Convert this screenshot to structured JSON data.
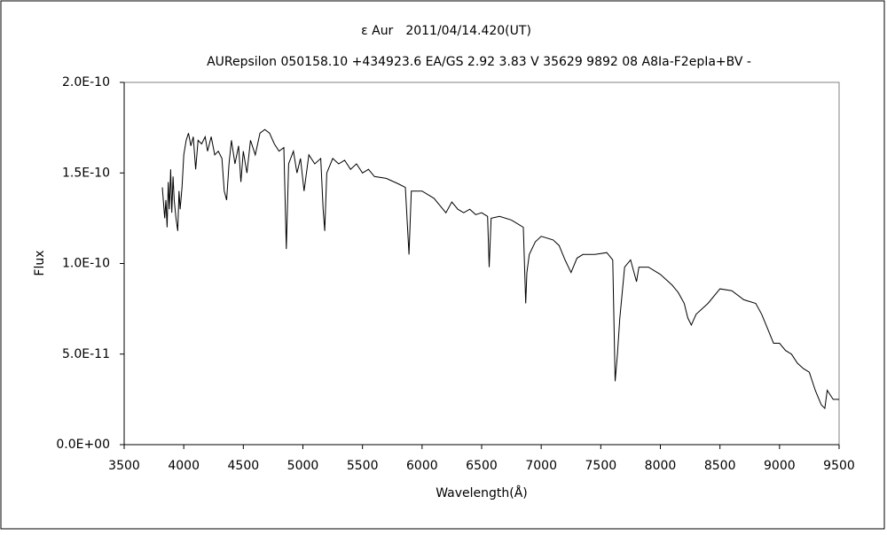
{
  "chart_data": {
    "type": "line",
    "title": "ε Aur　2011/04/14.420(UT)",
    "subtitle": "AURepsilon 050158.10 +434923.6 EA/GS 2.92 3.83 V 35629 9892 08 A8Ia-F2epIa+BV -",
    "x_label": "Wavelength(Å)",
    "y_label": "Flux",
    "color": "#000000",
    "xlim": [
      3500,
      9500
    ],
    "xticks": [
      3500,
      4000,
      4500,
      5000,
      5500,
      6000,
      6500,
      7000,
      7500,
      8000,
      8500,
      9000,
      9500
    ],
    "ylim": [
      0,
      2e-10
    ],
    "yticks": [
      {
        "value": 0,
        "label": "0.0E+00"
      },
      {
        "value": 5e-11,
        "label": "5.0E-11"
      },
      {
        "value": 1e-10,
        "label": "1.0E-10"
      },
      {
        "value": 1.5e-10,
        "label": "1.5E-10"
      },
      {
        "value": 2e-10,
        "label": "2.0E-10"
      }
    ],
    "x": [
      3820,
      3840,
      3850,
      3860,
      3870,
      3880,
      3890,
      3900,
      3910,
      3920,
      3935,
      3950,
      3960,
      3970,
      3985,
      4000,
      4020,
      4040,
      4060,
      4080,
      4100,
      4120,
      4150,
      4180,
      4200,
      4230,
      4260,
      4290,
      4320,
      4340,
      4360,
      4380,
      4400,
      4430,
      4460,
      4480,
      4500,
      4530,
      4560,
      4600,
      4640,
      4680,
      4720,
      4760,
      4800,
      4840,
      4861,
      4880,
      4920,
      4950,
      4980,
      5010,
      5050,
      5100,
      5150,
      5170,
      5183,
      5200,
      5250,
      5300,
      5350,
      5400,
      5450,
      5500,
      5550,
      5600,
      5700,
      5800,
      5860,
      5890,
      5910,
      6000,
      6100,
      6150,
      6200,
      6250,
      6300,
      6350,
      6400,
      6450,
      6500,
      6550,
      6563,
      6580,
      6650,
      6750,
      6850,
      6870,
      6880,
      6900,
      6950,
      7000,
      7100,
      7150,
      7200,
      7250,
      7300,
      7350,
      7450,
      7550,
      7600,
      7620,
      7640,
      7660,
      7700,
      7750,
      7800,
      7820,
      7900,
      8000,
      8100,
      8150,
      8200,
      8230,
      8260,
      8300,
      8400,
      8500,
      8600,
      8700,
      8800,
      8850,
      8900,
      8950,
      9000,
      9050,
      9100,
      9150,
      9200,
      9250,
      9300,
      9350,
      9380,
      9400,
      9450,
      9500
    ],
    "values": [
      1.42e-10,
      1.25e-10,
      1.35e-10,
      1.2e-10,
      1.45e-10,
      1.3e-10,
      1.52e-10,
      1.28e-10,
      1.48e-10,
      1.35e-10,
      1.25e-10,
      1.18e-10,
      1.4e-10,
      1.3e-10,
      1.42e-10,
      1.6e-10,
      1.68e-10,
      1.72e-10,
      1.65e-10,
      1.7e-10,
      1.52e-10,
      1.68e-10,
      1.66e-10,
      1.7e-10,
      1.62e-10,
      1.7e-10,
      1.6e-10,
      1.62e-10,
      1.58e-10,
      1.4e-10,
      1.35e-10,
      1.55e-10,
      1.68e-10,
      1.55e-10,
      1.65e-10,
      1.45e-10,
      1.62e-10,
      1.5e-10,
      1.68e-10,
      1.6e-10,
      1.72e-10,
      1.74e-10,
      1.72e-10,
      1.66e-10,
      1.62e-10,
      1.64e-10,
      1.08e-10,
      1.55e-10,
      1.62e-10,
      1.5e-10,
      1.58e-10,
      1.4e-10,
      1.6e-10,
      1.55e-10,
      1.58e-10,
      1.3e-10,
      1.18e-10,
      1.5e-10,
      1.58e-10,
      1.55e-10,
      1.57e-10,
      1.52e-10,
      1.55e-10,
      1.5e-10,
      1.52e-10,
      1.48e-10,
      1.47e-10,
      1.44e-10,
      1.42e-10,
      1.05e-10,
      1.4e-10,
      1.4e-10,
      1.36e-10,
      1.32e-10,
      1.28e-10,
      1.34e-10,
      1.3e-10,
      1.28e-10,
      1.3e-10,
      1.27e-10,
      1.28e-10,
      1.26e-10,
      9.8e-11,
      1.25e-10,
      1.26e-10,
      1.24e-10,
      1.2e-10,
      7.8e-11,
      9.5e-11,
      1.05e-10,
      1.12e-10,
      1.15e-10,
      1.13e-10,
      1.1e-10,
      1.02e-10,
      9.5e-11,
      1.03e-10,
      1.05e-10,
      1.05e-10,
      1.06e-10,
      1.02e-10,
      3.5e-11,
      5e-11,
      7e-11,
      9.8e-11,
      1.02e-10,
      9e-11,
      9.8e-11,
      9.8e-11,
      9.4e-11,
      8.8e-11,
      8.4e-11,
      7.8e-11,
      7e-11,
      6.6e-11,
      7.2e-11,
      7.8e-11,
      8.6e-11,
      8.5e-11,
      8e-11,
      7.8e-11,
      7.2e-11,
      6.4e-11,
      5.6e-11,
      5.6e-11,
      5.2e-11,
      5e-11,
      4.5e-11,
      4.2e-11,
      4e-11,
      3e-11,
      2.2e-11,
      2e-11,
      3e-11,
      2.5e-11,
      2.5e-11
    ]
  }
}
